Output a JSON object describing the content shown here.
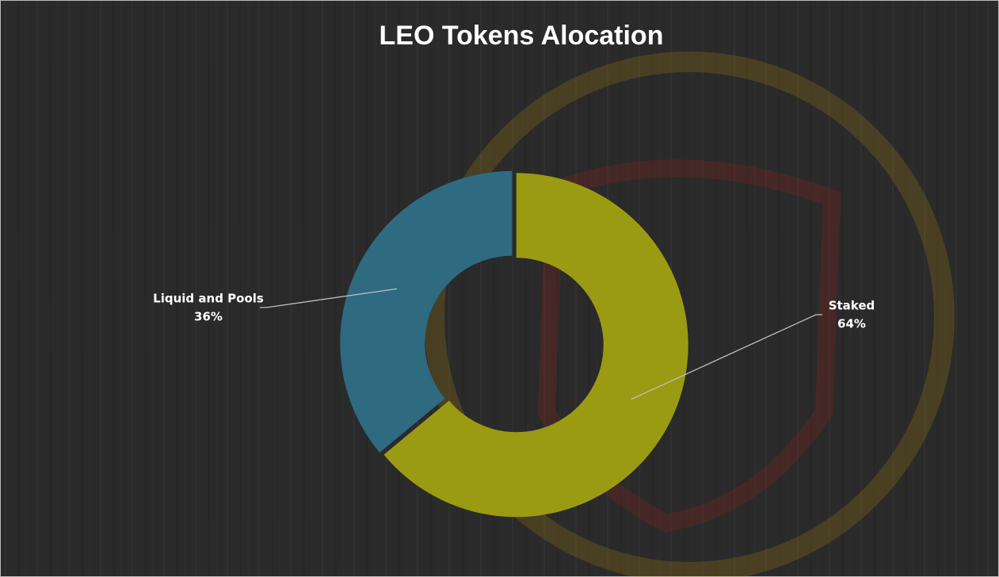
{
  "chart_data": {
    "type": "donut",
    "title": "LEO Tokens Alocation",
    "categories": [
      "Staked",
      "Liquid and Pools"
    ],
    "values": [
      64,
      36
    ],
    "value_labels": [
      "64%",
      "36%"
    ],
    "colors": [
      "#9b9a13",
      "#2e6a80"
    ]
  }
}
